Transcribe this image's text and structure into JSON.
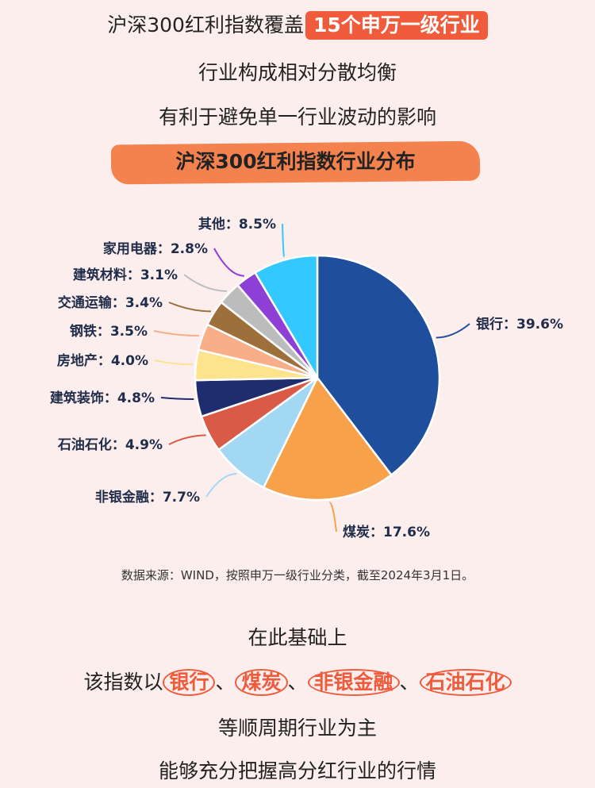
{
  "header": {
    "line1_text": "沪深300红利指数覆盖",
    "line1_highlight": "15个申万一级行业",
    "line2": "行业构成相对分散均衡",
    "line3": "有利于避免单一行业波动的影响",
    "banner": "沪深300红利指数行业分布"
  },
  "chart_data": {
    "type": "pie",
    "slices": [
      {
        "label": "银行",
        "value": 39.6,
        "color": "#1f4e9c"
      },
      {
        "label": "煤炭",
        "value": 17.6,
        "color": "#f7a24b"
      },
      {
        "label": "非银金融",
        "value": 7.7,
        "color": "#a3d8f2"
      },
      {
        "label": "石油石化",
        "value": 4.9,
        "color": "#d95a47"
      },
      {
        "label": "建筑装饰",
        "value": 4.8,
        "color": "#1f2d6e"
      },
      {
        "label": "房地产",
        "value": 4.0,
        "color": "#fce38c"
      },
      {
        "label": "钢铁",
        "value": 3.5,
        "color": "#f9ae8a"
      },
      {
        "label": "交通运输",
        "value": 3.4,
        "color": "#9c6f3b"
      },
      {
        "label": "建筑材料",
        "value": 3.1,
        "color": "#bcbcbc"
      },
      {
        "label": "家用电器",
        "value": 2.8,
        "color": "#8d3fd6"
      },
      {
        "label": "其他",
        "value": 8.5,
        "color": "#33c8ff"
      }
    ],
    "label_text": [
      "银行：39.6%",
      "煤炭：17.6%",
      "非银金融：7.7%",
      "石油石化：4.9%",
      "建筑装饰：4.8%",
      "房地产：4.0%",
      "钢铁：3.5%",
      "交通运输：3.4%",
      "建筑材料：3.1%",
      "家用电器：2.8%",
      "其他：8.5%"
    ]
  },
  "source": "数据来源：WIND，按照申万一级行业分类，截至2024年3月1日。",
  "footer": {
    "line1": "在此基础上",
    "line2_prefix": "该指数以",
    "highlights": [
      "银行",
      "煤炭",
      "非银金融",
      "石油石化"
    ],
    "sep": "、",
    "line3": "等顺周期行业为主",
    "line4": "能够充分把握高分红行业的行情"
  }
}
